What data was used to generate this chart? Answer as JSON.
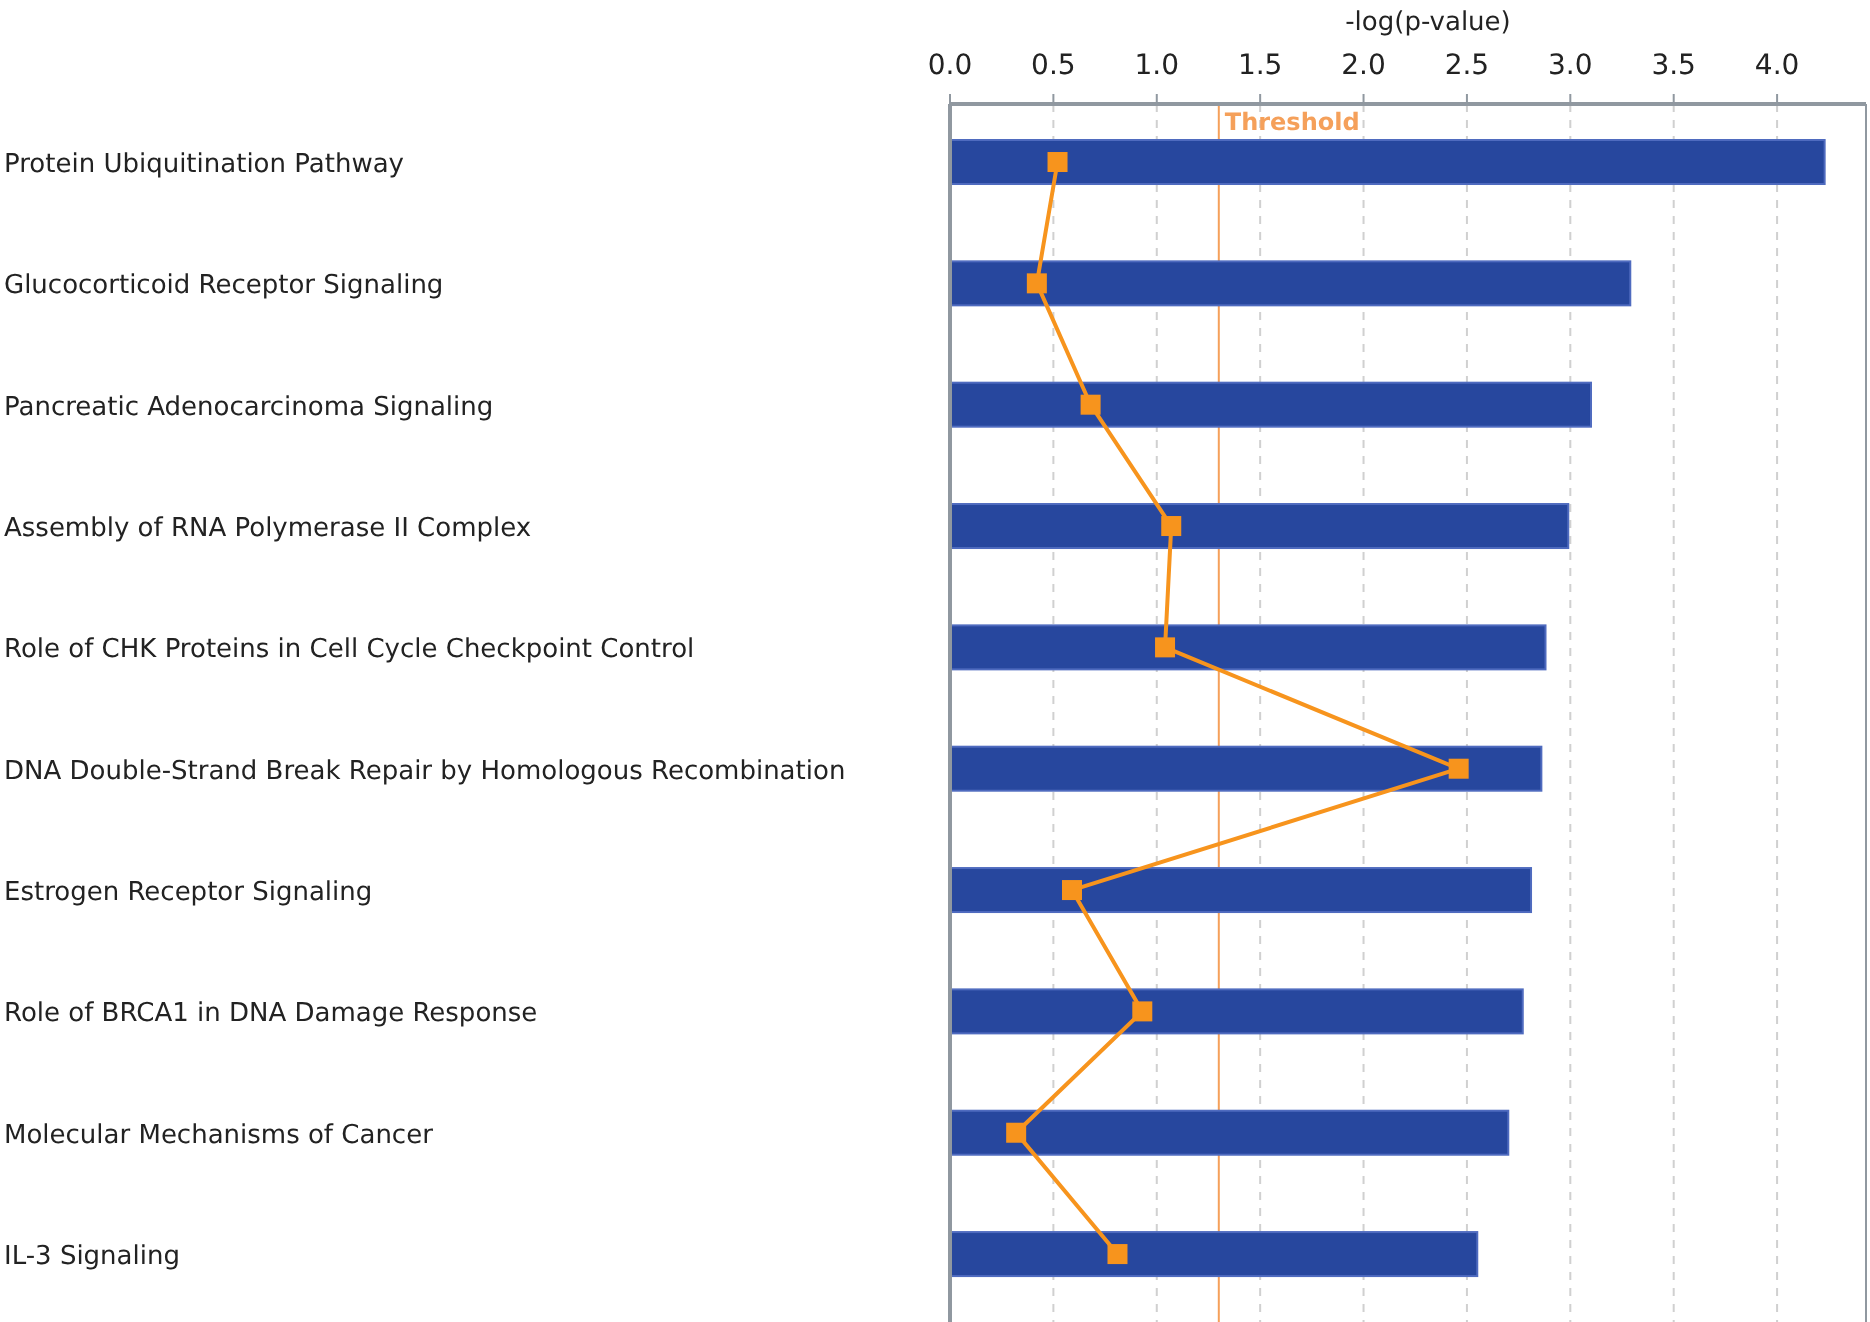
{
  "chart_data": {
    "type": "bar",
    "orientation": "horizontal",
    "xlabel": "-log(p-value)",
    "categories": [
      "Protein Ubiquitination Pathway",
      "Glucocorticoid Receptor Signaling",
      "Pancreatic Adenocarcinoma Signaling",
      "Assembly of RNA Polymerase II Complex",
      "Role of CHK Proteins in Cell Cycle Checkpoint Control",
      "DNA Double-Strand Break Repair by Homologous Recombination",
      "Estrogen Receptor Signaling",
      "Role of BRCA1 in DNA Damage Response",
      "Molecular Mechanisms of Cancer",
      "IL-3 Signaling"
    ],
    "series": [
      {
        "color": "#27479e",
        "values": [
          4.23,
          3.29,
          3.1,
          2.99,
          2.88,
          2.86,
          2.81,
          2.77,
          2.7,
          2.55
        ]
      },
      {
        "type": "line",
        "color": "#f7941d",
        "marker": "square",
        "values": [
          0.52,
          0.42,
          0.68,
          1.07,
          1.04,
          2.46,
          0.59,
          0.93,
          0.32,
          0.81
        ]
      }
    ],
    "xlim": [
      0,
      4.43
    ],
    "xticks": [
      {
        "value": 0,
        "label": "0.0"
      },
      0.5,
      {
        "value": 1,
        "label": "1.0"
      },
      1.5,
      {
        "value": 2,
        "label": "2.0"
      },
      2.5,
      {
        "value": 3,
        "label": "3.0"
      },
      3.5,
      {
        "value": 4,
        "label": "4.0"
      }
    ],
    "ref_lines": [
      {
        "axis": "x",
        "value": 1.3,
        "label": "Threshold",
        "color": "#f5a05a"
      }
    ],
    "grid": "x"
  }
}
